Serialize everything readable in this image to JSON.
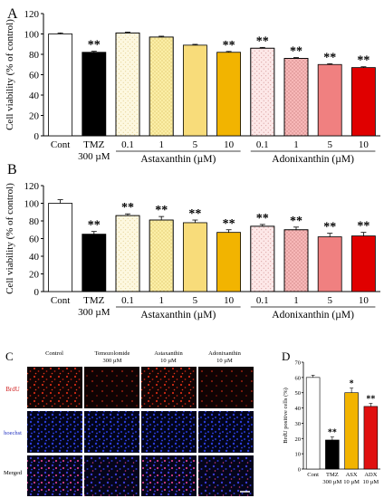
{
  "panels": {
    "A": "A",
    "B": "B",
    "C": "C",
    "D": "D"
  },
  "colors": {
    "cont": "#ffffff",
    "tmz": "#000000",
    "asx_fill": [
      "#fdf8e0",
      "#fbeea6",
      "#f8dc7a",
      "#f2b400"
    ],
    "adx_fill": [
      "#fde8e8",
      "#f8b8b8",
      "#f08080",
      "#e00000"
    ],
    "asx_dot": "#d4b24a",
    "adx_dot": "#c88080",
    "adx_bar_d": "#e01010",
    "asx_bar_d": "#f2b400",
    "bracket": "#000000"
  },
  "shared_labels": {
    "cont": "Cont",
    "tmz": "TMZ",
    "tmz_dose": "300 µM",
    "asx_group": "Astaxanthin (µM)",
    "adx_group": "Adonixanthin (µM)"
  },
  "panel_c": {
    "col_headers": [
      {
        "l1": "Control",
        "l2": ""
      },
      {
        "l1": "Temozolomide",
        "l2": "300 µM"
      },
      {
        "l1": "Astaxanthin",
        "l2": "10 µM"
      },
      {
        "l1": "Adonixanthin",
        "l2": "10 µM"
      }
    ],
    "row_labels": [
      "BrdU",
      "hoechst",
      "Merged"
    ]
  },
  "chart_data": [
    {
      "panel": "A",
      "type": "bar",
      "ylabel": "Cell viability (% of control)",
      "ylim": [
        0,
        120
      ],
      "yticks": [
        0,
        20,
        40,
        60,
        80,
        100,
        120
      ],
      "categories": [
        "Cont",
        "TMZ",
        "0.1",
        "1",
        "5",
        "10",
        "0.1",
        "1",
        "5",
        "10"
      ],
      "values": [
        100,
        82,
        101,
        97,
        89,
        82,
        86,
        76,
        70,
        67
      ],
      "errors": [
        1,
        1,
        0.8,
        0.8,
        0.8,
        0.8,
        0.8,
        0.8,
        0.8,
        0.8
      ],
      "significance": [
        "",
        "**",
        "",
        "",
        "",
        "**",
        "**",
        "**",
        "**",
        "**"
      ]
    },
    {
      "panel": "B",
      "type": "bar",
      "ylabel": "Cell viability (% of control)",
      "ylim": [
        0,
        120
      ],
      "yticks": [
        0,
        20,
        40,
        60,
        80,
        100,
        120
      ],
      "categories": [
        "Cont",
        "TMZ",
        "0.1",
        "1",
        "5",
        "10",
        "0.1",
        "1",
        "5",
        "10"
      ],
      "values": [
        100,
        65,
        86,
        81,
        78,
        67,
        74,
        70,
        62,
        63
      ],
      "errors": [
        4,
        3,
        2,
        4,
        3,
        3,
        2,
        3,
        4,
        4
      ],
      "significance": [
        "",
        "**",
        "**",
        "**",
        "**",
        "**",
        "**",
        "**",
        "**",
        "**"
      ]
    },
    {
      "panel": "D",
      "type": "bar",
      "ylabel": "BrdU positive cells (%)",
      "ylim": [
        0,
        70
      ],
      "yticks": [
        0,
        10,
        20,
        30,
        40,
        50,
        60,
        70
      ],
      "categories": [
        "Cont",
        "TMZ",
        "ASX",
        "ADX"
      ],
      "category_sub": [
        "",
        "300 µM",
        "10 µM",
        "10 µM"
      ],
      "values": [
        60,
        19,
        50,
        41
      ],
      "errors": [
        1.5,
        2,
        3,
        2
      ],
      "significance": [
        "",
        "**",
        "*",
        "**"
      ]
    }
  ]
}
